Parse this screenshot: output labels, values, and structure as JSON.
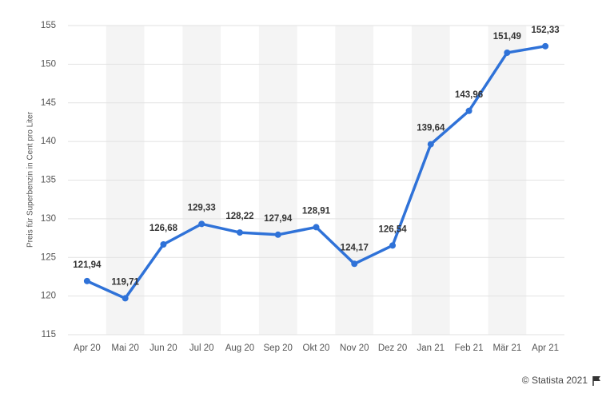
{
  "chart_data": {
    "type": "line",
    "y_label": "Preis für Superbenzin in Cent pro Liter",
    "categories": [
      "Apr 20",
      "Mai 20",
      "Jun 20",
      "Jul 20",
      "Aug 20",
      "Sep 20",
      "Okt 20",
      "Nov 20",
      "Dez 20",
      "Jan 21",
      "Feb 21",
      "Mär 21",
      "Apr 21"
    ],
    "values": [
      121.94,
      119.71,
      126.68,
      129.33,
      128.22,
      127.94,
      128.91,
      124.17,
      126.54,
      139.64,
      143.96,
      151.49,
      152.33
    ],
    "value_labels": [
      "121,94",
      "119,71",
      "126,68",
      "129,33",
      "128,22",
      "127,94",
      "128,91",
      "124,17",
      "126,54",
      "139,64",
      "143,96",
      "151,49",
      "152,33"
    ],
    "color": "#2f72d8",
    "ylim": [
      115,
      155
    ],
    "yticks": [
      115,
      120,
      125,
      130,
      135,
      140,
      145,
      150,
      155
    ],
    "grid": true,
    "credit": "© Statista 2021"
  }
}
